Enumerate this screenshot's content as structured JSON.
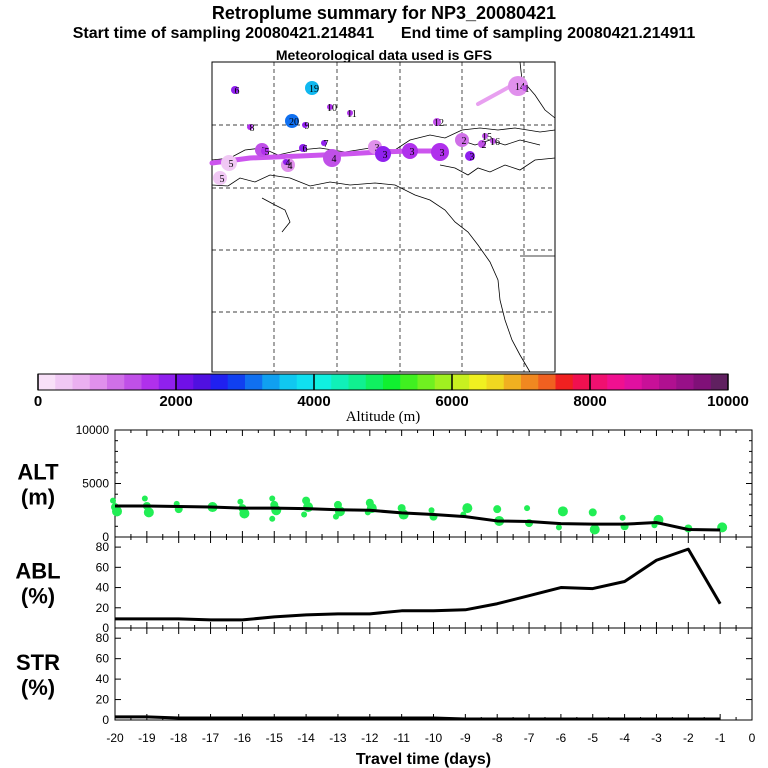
{
  "header": {
    "title": "Retroplume summary for NP3_20080421",
    "start_sampling": "Start time of sampling 20080421.214841",
    "end_sampling": "End time of sampling 20080421.214911",
    "met_data": "Meteorological data used is GFS"
  },
  "colors": {
    "plume_line": "#cc55ee",
    "alt_points": "#22ee55",
    "profile_line": "#000000",
    "grid": "#000000"
  },
  "colorbar": {
    "label": "Altitude (m)",
    "tick_labels": [
      "0",
      "2000",
      "4000",
      "6000",
      "8000",
      "10000"
    ],
    "range": [
      0,
      10000
    ],
    "colors": [
      "#f8e0f8",
      "#f0c8f4",
      "#eab0f0",
      "#e090ec",
      "#d070e8",
      "#c050e8",
      "#b030ec",
      "#9020ee",
      "#7010e8",
      "#5010e0",
      "#2020f0",
      "#1040f0",
      "#1070f0",
      "#10a0f0",
      "#10c8f0",
      "#10e0f0",
      "#10f0e0",
      "#10f0b8",
      "#10f090",
      "#10f060",
      "#10f030",
      "#40f020",
      "#70f020",
      "#a0f020",
      "#c8f020",
      "#f0f020",
      "#f0d820",
      "#f0b020",
      "#f08820",
      "#f06020",
      "#f02020",
      "#f01050",
      "#f01070",
      "#f01090",
      "#e010a0",
      "#c81098",
      "#b01090",
      "#981088",
      "#801078",
      "#602060"
    ]
  },
  "map": {
    "trajectory_labels": [
      "19",
      "6",
      "20",
      "8",
      "9",
      "10",
      "11",
      "12",
      "14",
      "15",
      "16",
      "7",
      "6",
      "5",
      "4",
      "4",
      "3",
      "3",
      "3",
      "3",
      "3",
      "2",
      "2",
      "5",
      "5",
      "5",
      "4",
      "1"
    ]
  },
  "chart_data": [
    {
      "type": "line",
      "panel": "ALT",
      "ylabel": "ALT\n(m)",
      "ylabel_lines": [
        "ALT",
        "(m)"
      ],
      "ylim": [
        0,
        10000
      ],
      "yticks": [
        0,
        5000,
        10000
      ],
      "x": [
        -20,
        -19,
        -18,
        -17,
        -16,
        -15,
        -14,
        -13,
        -12,
        -11,
        -10,
        -9,
        -8,
        -7,
        -6,
        -5,
        -4,
        -3,
        -2,
        -1
      ],
      "series": [
        {
          "name": "median altitude",
          "values": [
            2900,
            2900,
            2850,
            2800,
            2700,
            2700,
            2650,
            2550,
            2500,
            2250,
            2100,
            1900,
            1500,
            1450,
            1250,
            1200,
            1200,
            1350,
            700,
            650
          ]
        }
      ],
      "scatter": {
        "name": "particle altitudes",
        "x": [
          -20,
          -20,
          -20,
          -19,
          -19,
          -19,
          -18,
          -18,
          -17,
          -16,
          -16,
          -16,
          -15,
          -15,
          -15,
          -15,
          -14,
          -14,
          -14,
          -13,
          -13,
          -13,
          -12,
          -12,
          -12,
          -11,
          -11,
          -10,
          -10,
          -9,
          -9,
          -8,
          -8,
          -7,
          -7,
          -6,
          -6,
          -5,
          -5,
          -4,
          -4,
          -3,
          -3,
          -2,
          -1
        ],
        "y": [
          3400,
          2800,
          2400,
          3600,
          2900,
          2300,
          3100,
          2600,
          2800,
          3300,
          2700,
          2200,
          3600,
          3000,
          2500,
          1700,
          3400,
          2800,
          2100,
          3000,
          2400,
          1900,
          3200,
          2700,
          2300,
          2700,
          2100,
          2500,
          1900,
          2700,
          2100,
          2600,
          1500,
          2700,
          1300,
          2400,
          900,
          2300,
          700,
          1800,
          1000,
          1600,
          1100,
          800,
          900
        ]
      }
    },
    {
      "type": "line",
      "panel": "ABL",
      "ylabel": "ABL\n(%)",
      "ylabel_lines": [
        "ABL",
        "(%)"
      ],
      "ylim": [
        0,
        90
      ],
      "yticks": [
        0,
        20,
        40,
        60,
        80
      ],
      "x": [
        -20,
        -19,
        -18,
        -17,
        -16,
        -15,
        -14,
        -13,
        -12,
        -11,
        -10,
        -9,
        -8,
        -7,
        -6,
        -5,
        -4,
        -3,
        -2,
        -1
      ],
      "series": [
        {
          "name": "fraction in ABL",
          "values": [
            9,
            9,
            9,
            8,
            8,
            11,
            13,
            14,
            14,
            17,
            17,
            18,
            24,
            32,
            40,
            39,
            46,
            67,
            78,
            24
          ]
        }
      ]
    },
    {
      "type": "line",
      "panel": "STR",
      "ylabel": "STR\n(%)",
      "ylabel_lines": [
        "STR",
        "(%)"
      ],
      "ylim": [
        0,
        90
      ],
      "yticks": [
        0,
        20,
        40,
        60,
        80
      ],
      "x": [
        -20,
        -19,
        -18,
        -17,
        -16,
        -15,
        -14,
        -13,
        -12,
        -11,
        -10,
        -9,
        -8,
        -7,
        -6,
        -5,
        -4,
        -3,
        -2,
        -1
      ],
      "series": [
        {
          "name": "fraction in stratosphere",
          "values": [
            3,
            3,
            2,
            2,
            2,
            2,
            2,
            2,
            2,
            2,
            2,
            1,
            1,
            1,
            1,
            1,
            1,
            1,
            1,
            1
          ]
        }
      ],
      "xlabel": "Travel time (days)",
      "xticks": [
        -20,
        -19,
        -18,
        -17,
        -16,
        -15,
        -14,
        -13,
        -12,
        -11,
        -10,
        -9,
        -8,
        -7,
        -6,
        -5,
        -4,
        -3,
        -2,
        -1,
        0
      ],
      "xlim": [
        -20,
        0
      ]
    }
  ]
}
